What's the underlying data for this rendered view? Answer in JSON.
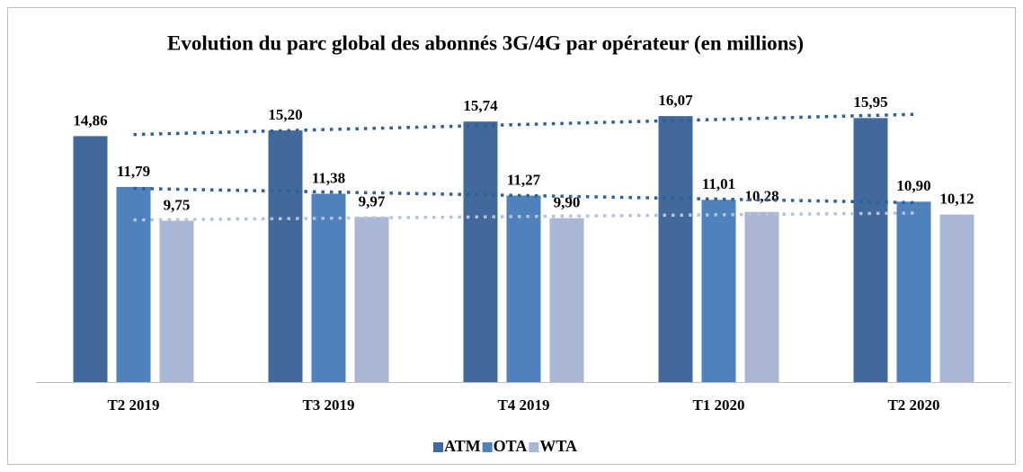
{
  "chart_data": {
    "type": "bar",
    "title": "Evolution du parc global des abonnés 3G/4G par opérateur (en millions)",
    "categories": [
      "T2 2019",
      "T3 2019",
      "T4 2019",
      "T1 2020",
      "T2 2020"
    ],
    "series": [
      {
        "name": "ATM",
        "color": "#41699b",
        "trend_color": "#2f6194",
        "values": [
          14.86,
          15.2,
          15.74,
          16.07,
          15.95
        ],
        "value_labels": [
          "14,86",
          "15,20",
          "15,74",
          "16,07",
          "15,95"
        ]
      },
      {
        "name": "OTA",
        "color": "#4f81bd",
        "trend_color": "#2f6194",
        "values": [
          11.79,
          11.38,
          11.27,
          11.01,
          10.9
        ],
        "value_labels": [
          "11,79",
          "11,38",
          "11,27",
          "11,01",
          "10,90"
        ]
      },
      {
        "name": "WTA",
        "color": "#aab6d6",
        "trend_color": "#b4c2dc",
        "values": [
          9.75,
          9.97,
          9.9,
          10.28,
          10.12
        ],
        "value_labels": [
          "9,75",
          "9,97",
          "9,90",
          "10,28",
          "10,12"
        ]
      }
    ],
    "ylim": [
      0,
      17
    ],
    "trendline": true,
    "legend": "bottom"
  }
}
